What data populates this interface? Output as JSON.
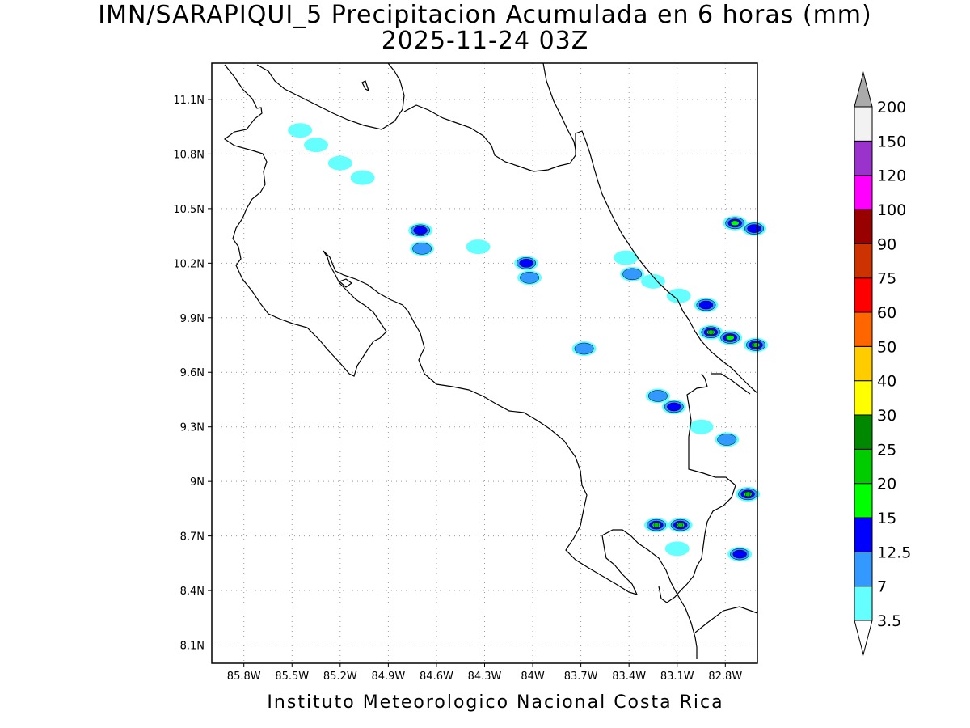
{
  "title": {
    "line1": "IMN/SARAPIQUI_5 Precipitacion Acumulada en 6 horas (mm)",
    "line2": "2025-11-24 03Z"
  },
  "credit": "Instituto Meteorologico Nacional Costa Rica",
  "axes": {
    "lon_ticks": [
      {
        "value": -85.8,
        "label": "85.8W"
      },
      {
        "value": -85.5,
        "label": "85.5W"
      },
      {
        "value": -85.2,
        "label": "85.2W"
      },
      {
        "value": -84.9,
        "label": "84.9W"
      },
      {
        "value": -84.6,
        "label": "84.6W"
      },
      {
        "value": -84.3,
        "label": "84.3W"
      },
      {
        "value": -84.0,
        "label": "84W"
      },
      {
        "value": -83.7,
        "label": "83.7W"
      },
      {
        "value": -83.4,
        "label": "83.4W"
      },
      {
        "value": -83.1,
        "label": "83.1W"
      },
      {
        "value": -82.8,
        "label": "82.8W"
      }
    ],
    "lat_ticks": [
      {
        "value": 11.1,
        "label": "11.1N"
      },
      {
        "value": 10.8,
        "label": "10.8N"
      },
      {
        "value": 10.5,
        "label": "10.5N"
      },
      {
        "value": 10.2,
        "label": "10.2N"
      },
      {
        "value": 9.9,
        "label": "9.9N"
      },
      {
        "value": 9.6,
        "label": "9.6N"
      },
      {
        "value": 9.3,
        "label": "9.3N"
      },
      {
        "value": 9.0,
        "label": "9N"
      },
      {
        "value": 8.7,
        "label": "8.7N"
      },
      {
        "value": 8.4,
        "label": "8.4N"
      },
      {
        "value": 8.1,
        "label": "8.1N"
      }
    ],
    "lon_range": [
      -86.0,
      -82.6
    ],
    "lat_range": [
      8.0,
      11.3
    ],
    "grid": true
  },
  "colorbar": {
    "levels": [
      {
        "label": "3.5",
        "color": "#66ffff"
      },
      {
        "label": "7",
        "color": "#3399ff"
      },
      {
        "label": "12.5",
        "color": "#0000ff"
      },
      {
        "label": "15",
        "color": "#00ff00"
      },
      {
        "label": "20",
        "color": "#00cc00"
      },
      {
        "label": "25",
        "color": "#008800"
      },
      {
        "label": "30",
        "color": "#ffff00"
      },
      {
        "label": "40",
        "color": "#ffcc00"
      },
      {
        "label": "50",
        "color": "#ff6600"
      },
      {
        "label": "60",
        "color": "#ff0000"
      },
      {
        "label": "75",
        "color": "#cc3300"
      },
      {
        "label": "90",
        "color": "#990000"
      },
      {
        "label": "100",
        "color": "#ff00ff"
      },
      {
        "label": "120",
        "color": "#9933cc"
      },
      {
        "label": "150",
        "color": "#f2f2f2"
      },
      {
        "label": "200",
        "color": "#aaaaaa"
      }
    ]
  },
  "precip_cells": [
    {
      "lon": -85.45,
      "lat": 10.93,
      "level": 0
    },
    {
      "lon": -85.35,
      "lat": 10.85,
      "level": 0
    },
    {
      "lon": -85.2,
      "lat": 10.75,
      "level": 0
    },
    {
      "lon": -85.06,
      "lat": 10.67,
      "level": 0
    },
    {
      "lon": -84.7,
      "lat": 10.38,
      "level": 2
    },
    {
      "lon": -84.69,
      "lat": 10.28,
      "level": 1
    },
    {
      "lon": -84.34,
      "lat": 10.29,
      "level": 0
    },
    {
      "lon": -84.04,
      "lat": 10.2,
      "level": 2
    },
    {
      "lon": -84.02,
      "lat": 10.12,
      "level": 1
    },
    {
      "lon": -83.68,
      "lat": 9.73,
      "level": 1
    },
    {
      "lon": -83.42,
      "lat": 10.23,
      "level": 0
    },
    {
      "lon": -83.38,
      "lat": 10.14,
      "level": 1
    },
    {
      "lon": -83.25,
      "lat": 10.1,
      "level": 0
    },
    {
      "lon": -83.09,
      "lat": 10.02,
      "level": 0
    },
    {
      "lon": -82.92,
      "lat": 9.97,
      "level": 2
    },
    {
      "lon": -82.89,
      "lat": 9.82,
      "level": 4
    },
    {
      "lon": -82.77,
      "lat": 9.79,
      "level": 3
    },
    {
      "lon": -82.61,
      "lat": 9.75,
      "level": 4
    },
    {
      "lon": -82.74,
      "lat": 10.42,
      "level": 3
    },
    {
      "lon": -82.62,
      "lat": 10.39,
      "level": 2
    },
    {
      "lon": -83.22,
      "lat": 9.47,
      "level": 1
    },
    {
      "lon": -83.12,
      "lat": 9.41,
      "level": 2
    },
    {
      "lon": -82.95,
      "lat": 9.3,
      "level": 0
    },
    {
      "lon": -82.79,
      "lat": 9.23,
      "level": 1
    },
    {
      "lon": -82.66,
      "lat": 8.93,
      "level": 4
    },
    {
      "lon": -83.23,
      "lat": 8.76,
      "level": 4
    },
    {
      "lon": -83.08,
      "lat": 8.76,
      "level": 4
    },
    {
      "lon": -83.1,
      "lat": 8.63,
      "level": 0
    },
    {
      "lon": -82.71,
      "lat": 8.6,
      "level": 2
    }
  ]
}
